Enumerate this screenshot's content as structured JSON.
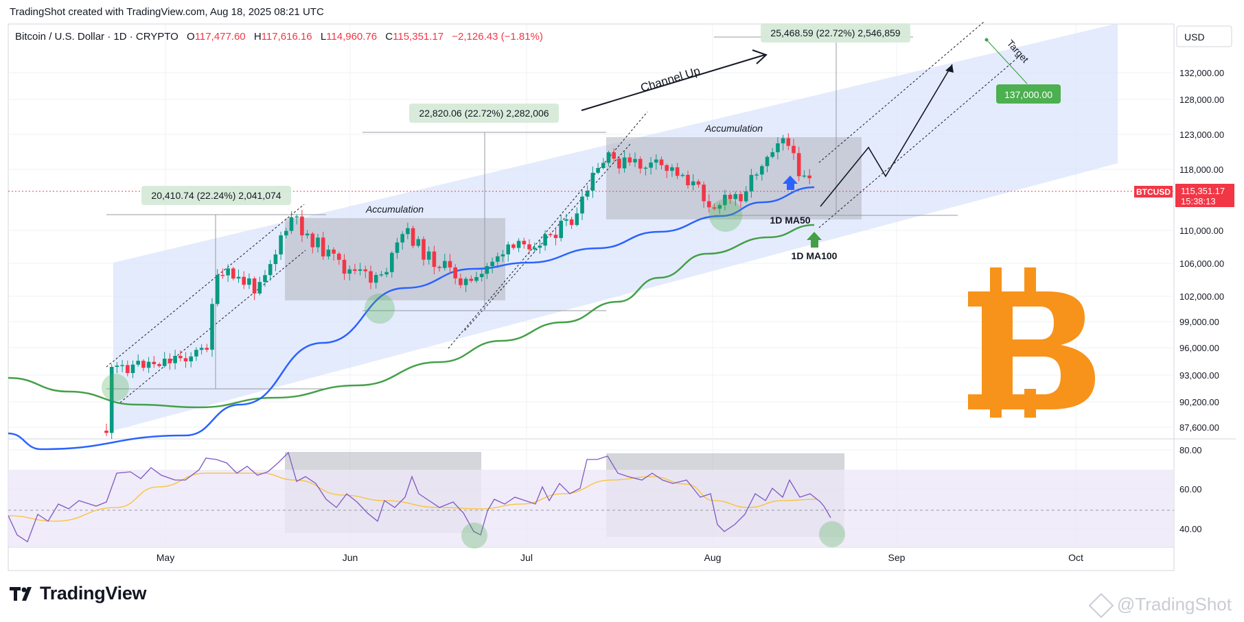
{
  "header": {
    "credit": "TradingShot created with TradingView.com, Aug 18, 2025 08:21 UTC"
  },
  "symbol_line": {
    "name": "Bitcoin / U.S. Dollar · 1D · CRYPTO",
    "open_label": "O",
    "open": "117,477.60",
    "high_label": "H",
    "high": "117,616.16",
    "low_label": "L",
    "low": "114,960.76",
    "close_label": "C",
    "close": "115,351.17",
    "change": "−2,126.43 (−1.81%)"
  },
  "price_axis": {
    "currency": "USD",
    "ticks": [
      "132,000.00",
      "128,000.00",
      "123,000.00",
      "118,000.00",
      "110,000.00",
      "106,000.00",
      "102,000.00",
      "99,000.00",
      "96,000.00",
      "93,000.00",
      "90,200.00",
      "87,600.00"
    ],
    "last_symbol": "BTCUSD",
    "last_price": "115,351.17",
    "countdown": "15:38:13"
  },
  "rsi_axis": {
    "ticks": [
      "80.00",
      "60.00",
      "40.00"
    ]
  },
  "time_axis": {
    "ticks": [
      "May",
      "Jun",
      "Jul",
      "Aug",
      "Sep",
      "Oct"
    ]
  },
  "annotations": {
    "measure_1": "20,410.74 (22.24%) 2,041,074",
    "measure_2": "22,820.06 (22.72%) 2,282,006",
    "measure_3": "25,468.59 (22.72%) 2,546,859",
    "target_value": "137,000.00",
    "target_word": "Target",
    "channel_label": "Channel Up",
    "accumulation_1": "Accumulation",
    "accumulation_2": "Accumulation",
    "ma50_label": "1D MA50",
    "ma100_label": "1D MA100"
  },
  "colors": {
    "up": "#089981",
    "down": "#f23645",
    "ma50": "#2962ff",
    "ma100": "#43a047",
    "rsi": "#7e57c2",
    "rsi_ma": "#fbc02d",
    "channel": "#dbe4fb",
    "box": "#b2b5be",
    "target_box": "#4caf50",
    "bitcoin": "#f7931a",
    "price_tag": "#f23645"
  },
  "footer": {
    "logo": "TradingView",
    "watermark": "@TradingShot"
  },
  "chart_data": {
    "type": "candlestick",
    "series": [
      {
        "name": "BTCUSD",
        "ohlc_summary": {
          "open": 117477.6,
          "high": 117616.16,
          "low": 114960.76,
          "close": 115351.17
        }
      },
      {
        "name": "1D MA50"
      },
      {
        "name": "1D MA100"
      }
    ],
    "indicators": [
      "RSI",
      "RSI MA"
    ],
    "target": 137000,
    "x_ticks": [
      "May",
      "Jun",
      "Jul",
      "Aug",
      "Sep",
      "Oct"
    ],
    "y_range": [
      86500,
      136500
    ]
  }
}
